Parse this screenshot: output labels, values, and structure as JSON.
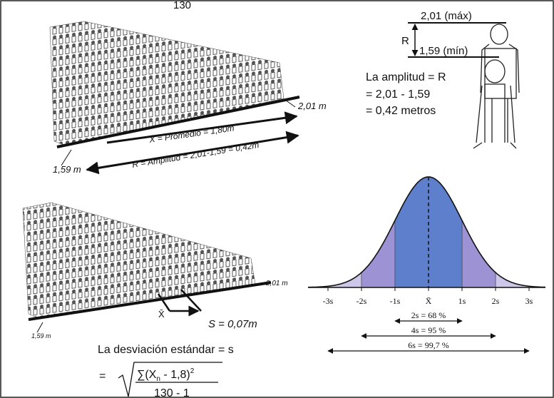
{
  "top_text": "130",
  "range_figure": {
    "max_label": "2,01 (máx)",
    "r_label": "R",
    "min_label": "1,59 (mín)"
  },
  "amplitude_text": [
    "La amplitud = R",
    "= 2,01 - 1,59",
    "= 0,42 metros"
  ],
  "crowd_top": {
    "max_label": "2,01 m",
    "mean_label": "X̄ = Promedio = 1,80m",
    "range_label": "R = Amplitud = 2,01-1,59 = 0,42m",
    "min_label": "1,59 m"
  },
  "crowd_bottom": {
    "max_label": "2,01 m",
    "mean_label": "X̄",
    "std_label": "S = 0,07m",
    "min_label": "1,59 m"
  },
  "std_text": "La desviación estándar = s",
  "formula": {
    "equals": "=",
    "numerator": [
      "∑(X",
      "n",
      "  -  1,8)",
      "2"
    ],
    "denominator": "130  -  1"
  },
  "bell_curve": {
    "axis_labels": [
      "-3s",
      "-2s",
      "-1s",
      "X̄",
      "1s",
      "2s",
      "3s"
    ],
    "intervals": [
      "2s = 68 %",
      "4s = 95 %",
      "6s = 99,7 %"
    ]
  }
}
